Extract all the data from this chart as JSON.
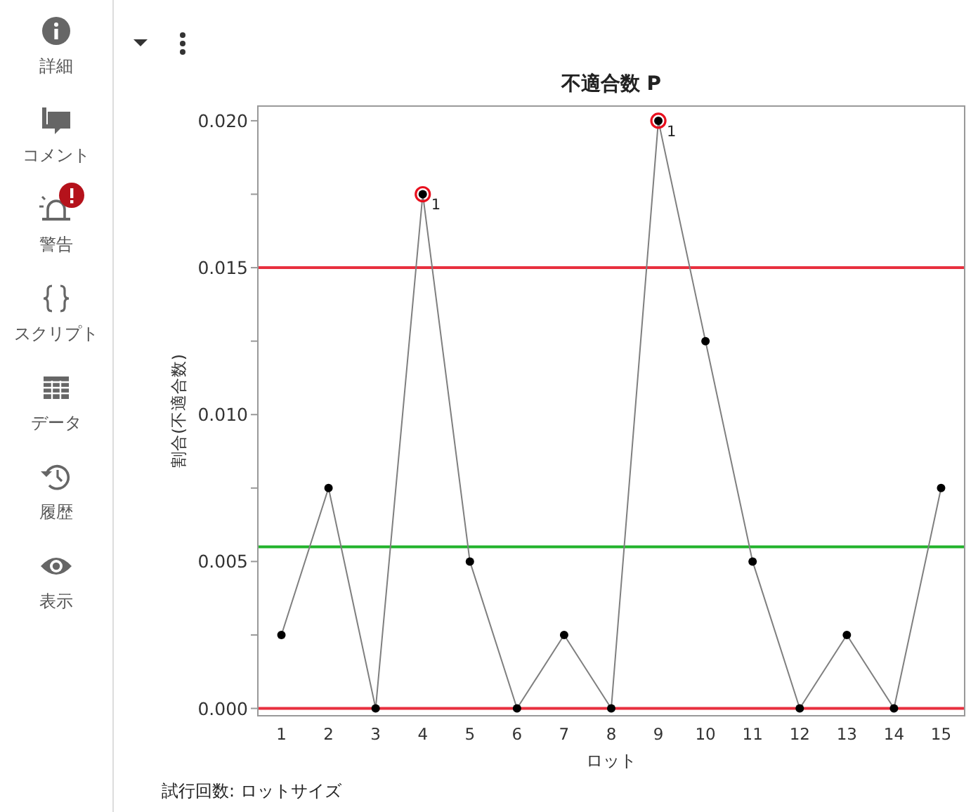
{
  "chart_data": {
    "type": "line",
    "title": "不適合数 P",
    "xlabel": "ロット",
    "ylabel": "割合(不適合数)",
    "categories": [
      "1",
      "2",
      "3",
      "4",
      "5",
      "6",
      "7",
      "8",
      "9",
      "10",
      "11",
      "12",
      "13",
      "14",
      "15"
    ],
    "ylim": [
      -0.00025,
      0.0205
    ],
    "yticks": [
      {
        "value": 0,
        "label": "0.000"
      },
      {
        "value": 0.0025,
        "label": null
      },
      {
        "value": 0.005,
        "label": "0.005"
      },
      {
        "value": 0.0075,
        "label": null
      },
      {
        "value": 0.01,
        "label": "0.010"
      },
      {
        "value": 0.0125,
        "label": null
      },
      {
        "value": 0.015,
        "label": "0.015"
      },
      {
        "value": 0.0175,
        "label": null
      },
      {
        "value": 0.02,
        "label": "0.020"
      }
    ],
    "series": [
      {
        "type": "line",
        "color": "#7f7f7f",
        "marker": "none",
        "values": [
          0.0025,
          0.0075,
          0,
          0.0175,
          0.005,
          0,
          0.0025,
          0,
          0.02,
          0.0125,
          0.005,
          0,
          0.0025,
          0,
          0.0075
        ]
      },
      {
        "type": "scatter",
        "color": "#000000",
        "marker": "circle",
        "values": [
          0.0025,
          0.0075,
          0,
          0.0175,
          0.005,
          0,
          0.0025,
          0,
          0.02,
          0.0125,
          0.005,
          0,
          0.0025,
          0,
          0.0075
        ]
      },
      {
        "type": "scatter",
        "color": "#e8101e",
        "marker": "circle",
        "x": [
          "4",
          "9"
        ],
        "values": [
          0.0175,
          0.02
        ]
      }
    ],
    "ref_lines": [
      {
        "axis": "y",
        "value": 0.015,
        "color": "#e8303f"
      },
      {
        "axis": "y",
        "value": 0.0055,
        "color": "#21b32b"
      },
      {
        "axis": "y",
        "value": 0,
        "color": "#e8303f"
      }
    ],
    "line_style": "solid",
    "annotations": [
      "詳細",
      "コメント",
      "警告",
      "スクリプト",
      "データ",
      "履歴",
      "表示",
      {
        "text": "1",
        "x": "4",
        "y": 0.0175
      },
      {
        "text": "1",
        "x": "9",
        "y": 0.02
      },
      "試行回数: ロットサイズ"
    ]
  }
}
